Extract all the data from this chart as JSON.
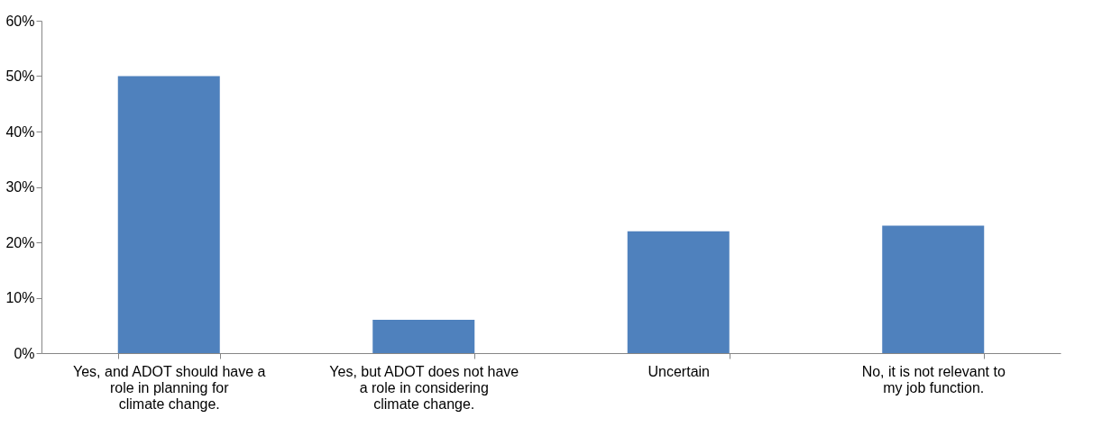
{
  "chart_data": {
    "type": "bar",
    "categories": [
      "Yes, and ADOT should have a role in planning for climate change.",
      "Yes, but ADOT does not have a role in considering climate change.",
      "Uncertain",
      "No, it is not relevant to my job function."
    ],
    "values": [
      50,
      6,
      22,
      23
    ],
    "color": "#4f81bd",
    "ylim": [
      0,
      60
    ],
    "yticks": [
      {
        "value": 0,
        "label": "0%"
      },
      {
        "value": 10,
        "label": "10%"
      },
      {
        "value": 20,
        "label": "20%"
      },
      {
        "value": 30,
        "label": "30%"
      },
      {
        "value": 40,
        "label": "40%"
      },
      {
        "value": 50,
        "label": "50%"
      },
      {
        "value": 60,
        "label": "60%"
      }
    ],
    "grid": false
  }
}
